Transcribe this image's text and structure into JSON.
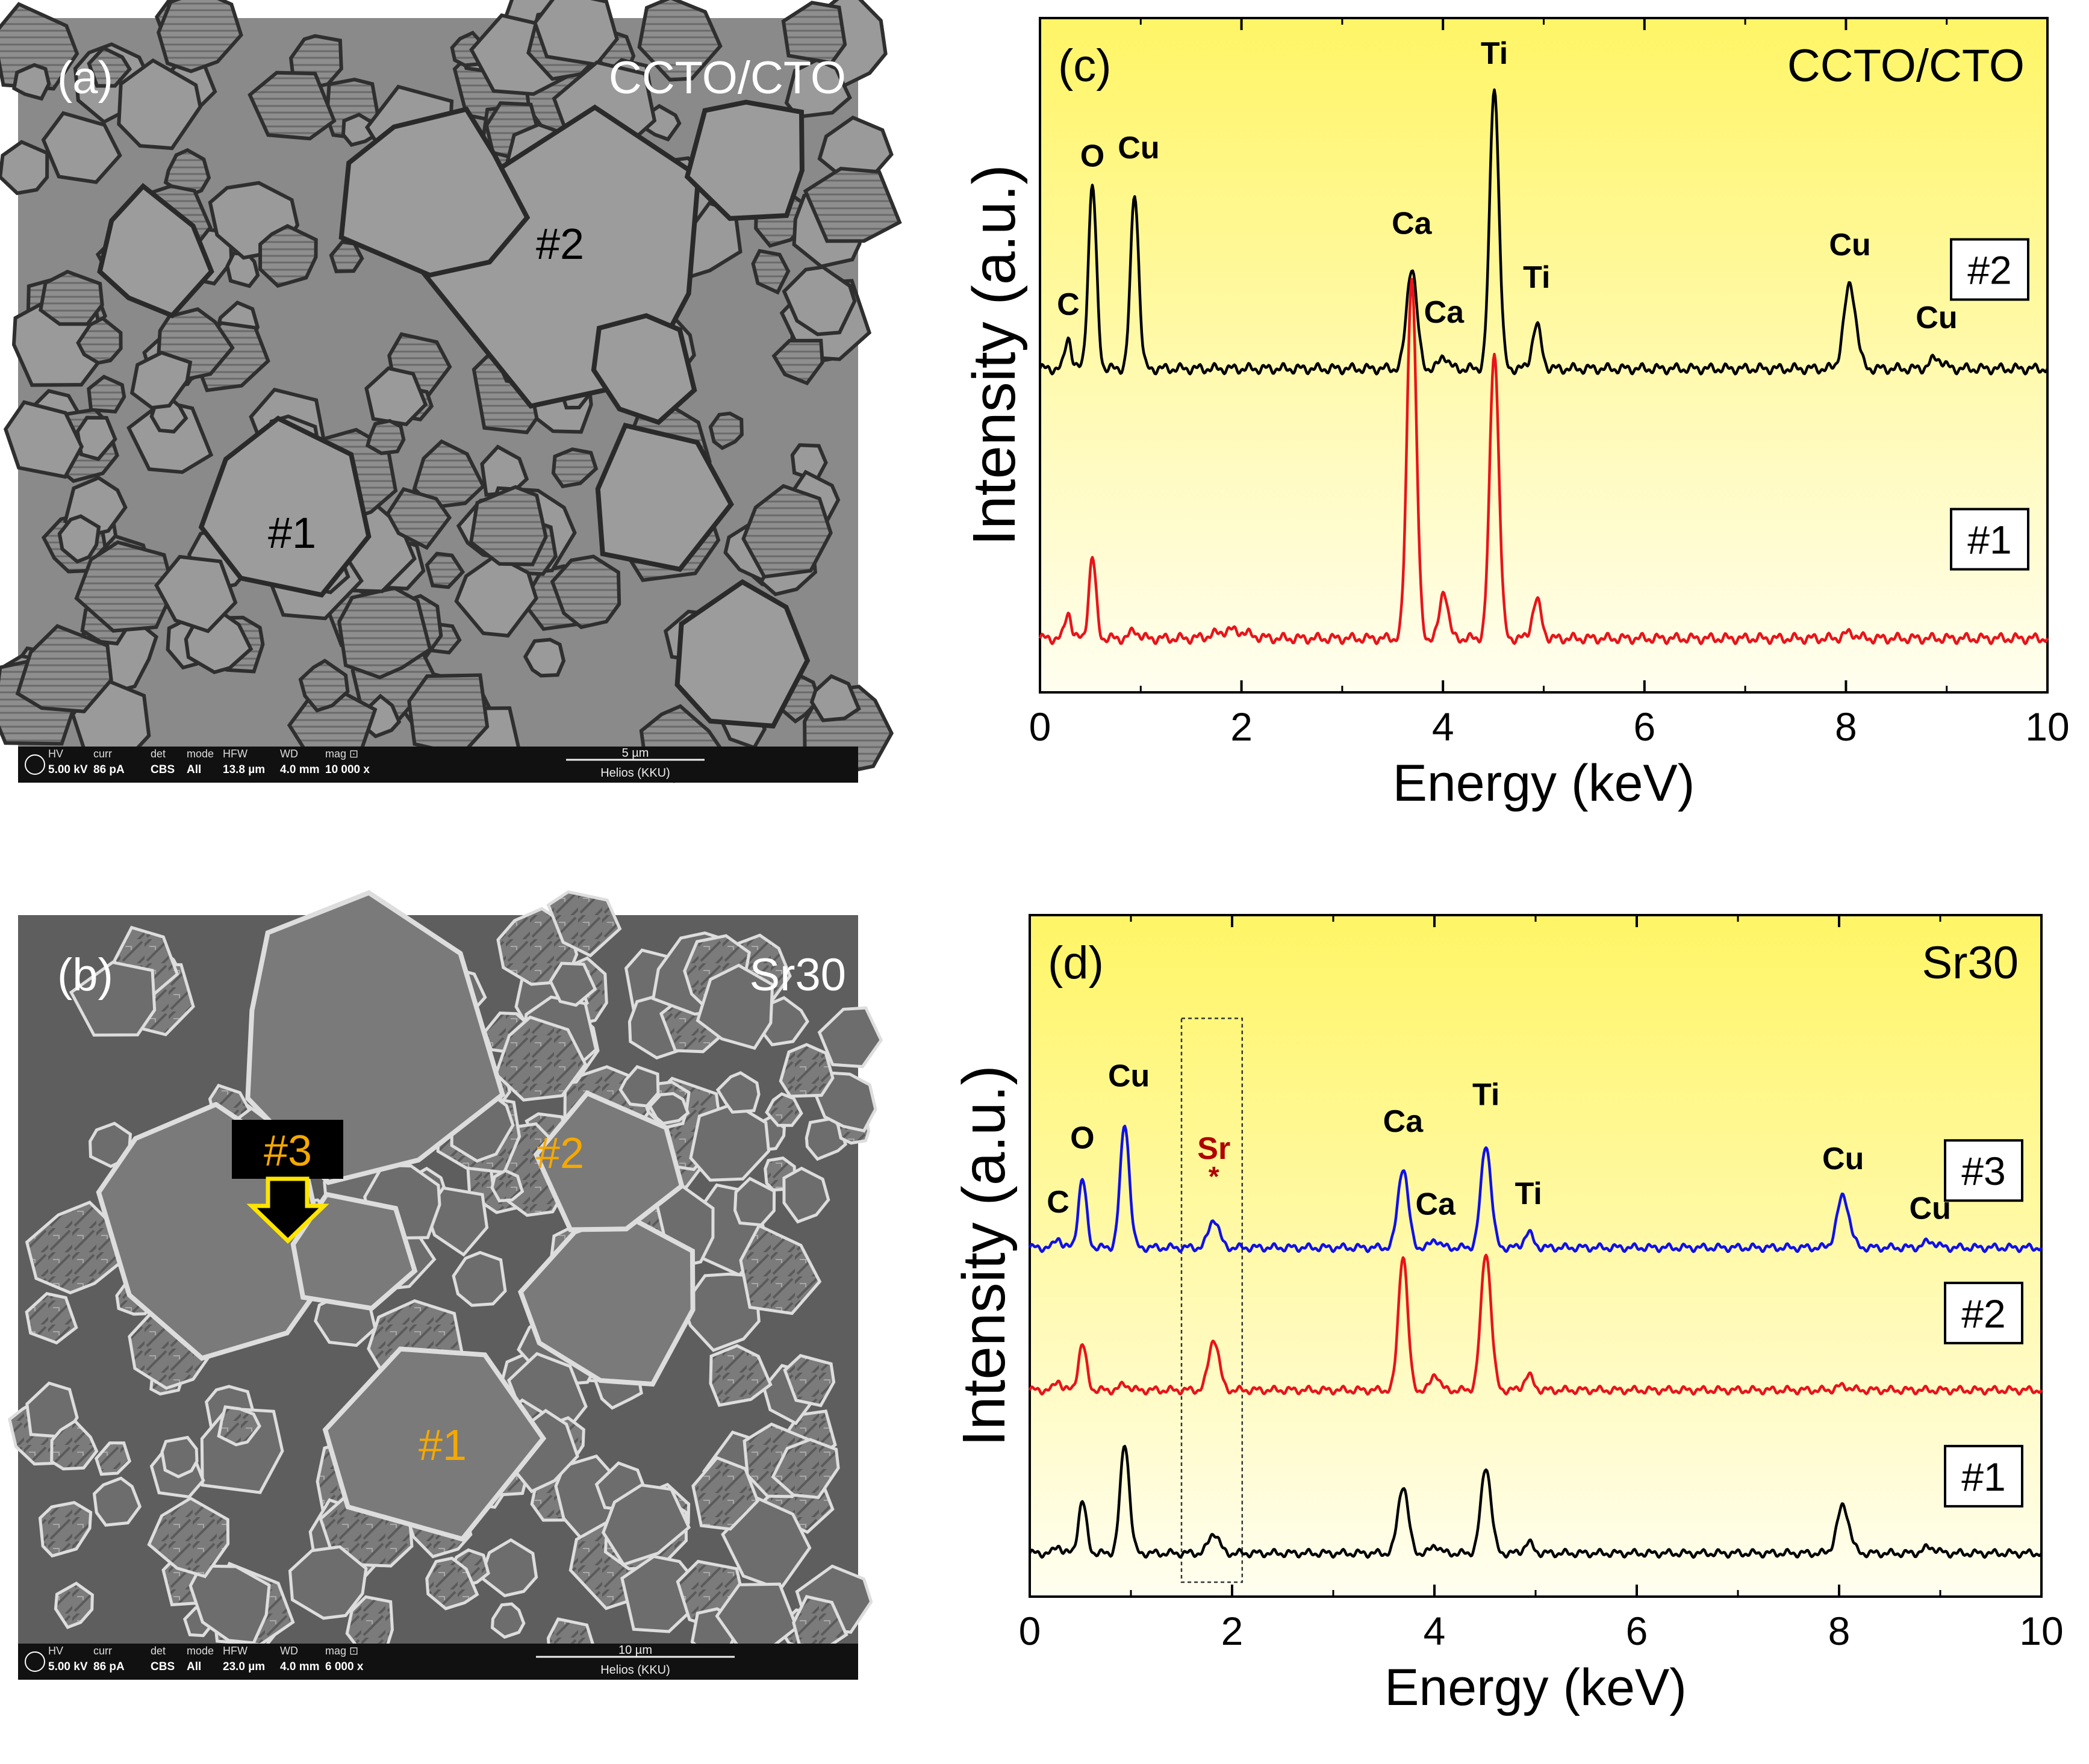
{
  "panels": {
    "a": {
      "label": "(a)",
      "sample": "CCTO/CTO",
      "grains": [
        "#1",
        "#2"
      ],
      "info_headers": [
        "HV",
        "curr",
        "det",
        "mode",
        "HFW",
        "WD",
        "mag ⊡"
      ],
      "info_values": [
        "5.00 kV",
        "86 pA",
        "CBS",
        "All",
        "13.8 µm",
        "4.0 mm",
        "10 000 x"
      ],
      "scale_label": "5 µm",
      "instrument": "Helios (KKU)"
    },
    "b": {
      "label": "(b)",
      "sample": "Sr30",
      "grains": [
        "#1",
        "#2",
        "#3"
      ],
      "info_headers": [
        "HV",
        "curr",
        "det",
        "mode",
        "HFW",
        "WD",
        "mag ⊡"
      ],
      "info_values": [
        "5.00 kV",
        "86 pA",
        "CBS",
        "All",
        "23.0 µm",
        "4.0 mm",
        "6 000 x"
      ],
      "scale_label": "10 µm",
      "instrument": "Helios (KKU)"
    }
  },
  "colors": {
    "black": "#000000",
    "red": "#e8141a",
    "blue": "#1010e8",
    "sr": "#b00000",
    "marker": "#f5a800",
    "bg_top": "#fff566",
    "bg_bottom": "#fffef0"
  },
  "chart_data": [
    {
      "type": "line",
      "panel": "(c)",
      "title": "CCTO/CTO",
      "xlabel": "Energy (keV)",
      "ylabel": "Intensity (a.u.)",
      "xlim": [
        0,
        10
      ],
      "ylim": [
        0,
        2.5
      ],
      "xticks": [
        0,
        2,
        4,
        6,
        8,
        10
      ],
      "series": [
        {
          "name": "#2",
          "color": "black",
          "baseline": 1.2,
          "peaks": [
            [
              0.28,
              0.12,
              0.03
            ],
            [
              0.52,
              0.68,
              0.04
            ],
            [
              0.94,
              0.65,
              0.04
            ],
            [
              3.69,
              0.38,
              0.05
            ],
            [
              4.01,
              0.05,
              0.04
            ],
            [
              4.51,
              1.05,
              0.045
            ],
            [
              4.93,
              0.16,
              0.045
            ],
            [
              8.04,
              0.31,
              0.06
            ],
            [
              8.9,
              0.04,
              0.06
            ]
          ]
        },
        {
          "name": "#1",
          "color": "red",
          "baseline": 0.2,
          "peaks": [
            [
              0.28,
              0.1,
              0.03
            ],
            [
              0.52,
              0.3,
              0.035
            ],
            [
              0.94,
              0.03,
              0.04
            ],
            [
              1.9,
              0.03,
              0.15
            ],
            [
              3.69,
              1.35,
              0.045
            ],
            [
              4.01,
              0.18,
              0.04
            ],
            [
              4.51,
              1.07,
              0.045
            ],
            [
              4.93,
              0.14,
              0.045
            ],
            [
              8.04,
              0.02,
              0.06
            ]
          ]
        }
      ],
      "annotations": [
        {
          "text": "C",
          "x": 0.28,
          "y": 1.4
        },
        {
          "text": "O",
          "x": 0.52,
          "y": 1.95
        },
        {
          "text": "Cu",
          "x": 0.98,
          "y": 1.98
        },
        {
          "text": "Ca",
          "x": 3.69,
          "y": 1.7
        },
        {
          "text": "Ca",
          "x": 4.01,
          "y": 1.37
        },
        {
          "text": "Ti",
          "x": 4.51,
          "y": 2.33
        },
        {
          "text": "Ti",
          "x": 4.93,
          "y": 1.5
        },
        {
          "text": "Cu",
          "x": 8.04,
          "y": 1.62
        },
        {
          "text": "Cu",
          "x": 8.9,
          "y": 1.35
        }
      ]
    },
    {
      "type": "line",
      "panel": "(d)",
      "title": "Sr30",
      "xlabel": "Energy (keV)",
      "ylabel": "Intensity (a.u.)",
      "xlim": [
        0,
        10
      ],
      "ylim": [
        0,
        3.3
      ],
      "xticks": [
        0,
        2,
        4,
        6,
        8,
        10
      ],
      "highlight": {
        "x0": 1.5,
        "x1": 2.1,
        "label": "Sr",
        "mark": "*"
      },
      "series": [
        {
          "name": "#3",
          "color": "blue",
          "baseline": 1.69,
          "peaks": [
            [
              0.28,
              0.05,
              0.03
            ],
            [
              0.52,
              0.33,
              0.04
            ],
            [
              0.94,
              0.6,
              0.045
            ],
            [
              1.82,
              0.14,
              0.05
            ],
            [
              3.69,
              0.39,
              0.05
            ],
            [
              4.01,
              0.04,
              0.04
            ],
            [
              4.51,
              0.5,
              0.05
            ],
            [
              4.93,
              0.07,
              0.045
            ],
            [
              8.04,
              0.25,
              0.06
            ],
            [
              8.9,
              0.03,
              0.06
            ]
          ]
        },
        {
          "name": "#2",
          "color": "red",
          "baseline": 1.0,
          "peaks": [
            [
              0.28,
              0.05,
              0.03
            ],
            [
              0.52,
              0.22,
              0.04
            ],
            [
              0.94,
              0.03,
              0.04
            ],
            [
              1.82,
              0.25,
              0.05
            ],
            [
              3.69,
              0.66,
              0.045
            ],
            [
              4.01,
              0.08,
              0.04
            ],
            [
              4.51,
              0.67,
              0.05
            ],
            [
              4.93,
              0.07,
              0.045
            ],
            [
              8.04,
              0.02,
              0.06
            ]
          ]
        },
        {
          "name": "#1",
          "color": "black",
          "baseline": 0.21,
          "peaks": [
            [
              0.28,
              0.04,
              0.03
            ],
            [
              0.52,
              0.25,
              0.04
            ],
            [
              0.94,
              0.53,
              0.045
            ],
            [
              1.82,
              0.1,
              0.05
            ],
            [
              3.69,
              0.33,
              0.05
            ],
            [
              4.01,
              0.04,
              0.04
            ],
            [
              4.51,
              0.42,
              0.05
            ],
            [
              4.93,
              0.05,
              0.045
            ],
            [
              8.04,
              0.23,
              0.06
            ],
            [
              8.9,
              0.03,
              0.06
            ]
          ]
        }
      ],
      "annotations": [
        {
          "text": "C",
          "x": 0.28,
          "y": 1.86
        },
        {
          "text": "O",
          "x": 0.52,
          "y": 2.17
        },
        {
          "text": "Cu",
          "x": 0.98,
          "y": 2.47
        },
        {
          "text": "Sr",
          "x": 1.82,
          "y": 2.12
        },
        {
          "text": "Ca",
          "x": 3.69,
          "y": 2.25
        },
        {
          "text": "Ca",
          "x": 4.01,
          "y": 1.85
        },
        {
          "text": "Ti",
          "x": 4.51,
          "y": 2.38
        },
        {
          "text": "Ti",
          "x": 4.93,
          "y": 1.9
        },
        {
          "text": "Cu",
          "x": 8.04,
          "y": 2.07
        },
        {
          "text": "Cu",
          "x": 8.9,
          "y": 1.83
        }
      ]
    }
  ]
}
